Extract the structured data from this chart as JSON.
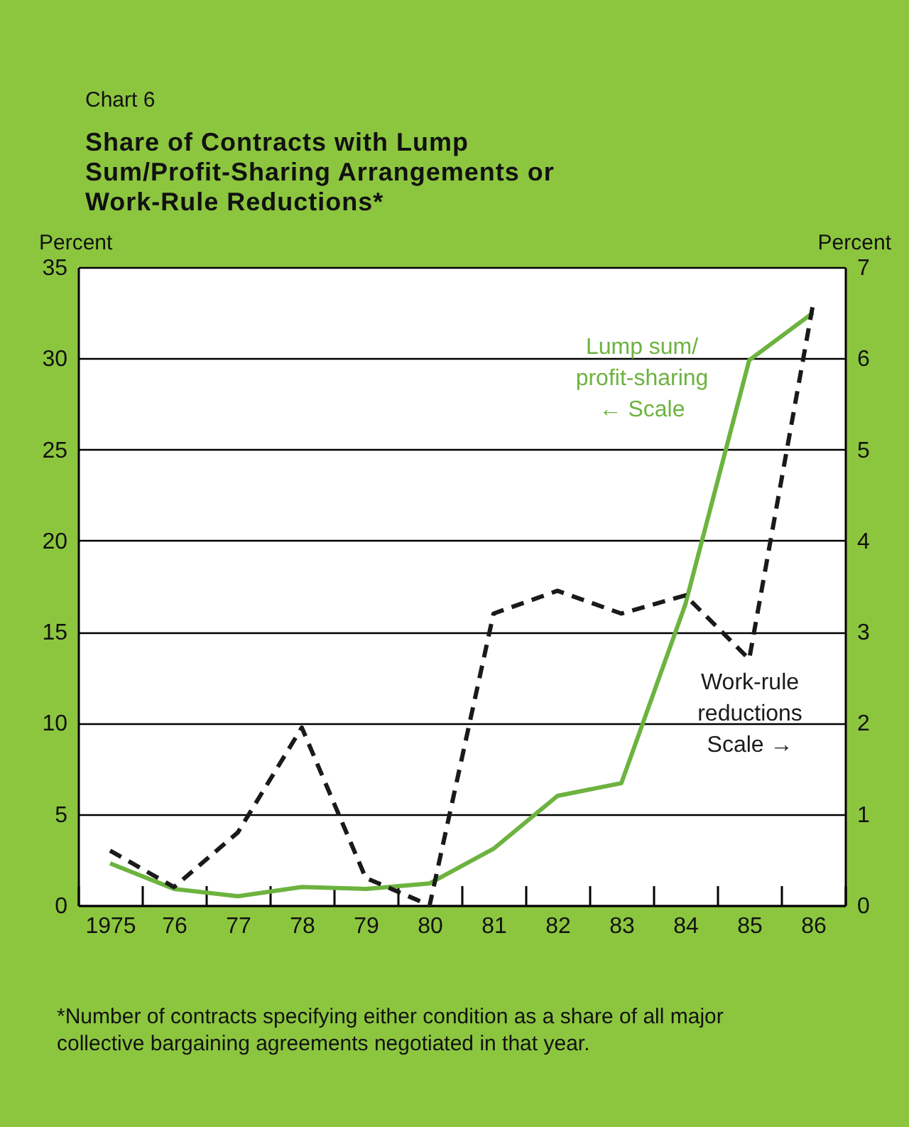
{
  "chart_data": {
    "type": "line",
    "title": "Share of Contracts with Lump Sum/Profit-Sharing Arrangements or Work-Rule Reductions*",
    "subtitle": "Chart 6",
    "ylabel": "Percent",
    "y2label": "Percent",
    "categories": [
      "1975",
      "76",
      "77",
      "78",
      "79",
      "80",
      "81",
      "82",
      "83",
      "84",
      "85",
      "86"
    ],
    "series": [
      {
        "name": "Lump sum/ profit-sharing",
        "color": "#6db33f",
        "line_style": "solid",
        "values": [
          2.3,
          0.9,
          0.5,
          1.0,
          0.9,
          1.2,
          3.1,
          6.0,
          6.7,
          16.5,
          29.9,
          32.5
        ]
      },
      {
        "name": "Work-rule reductions",
        "color": "#1a1a1a",
        "line_style": "dashed",
        "axis": "y2",
        "values": [
          0.6,
          0.2,
          0.8,
          1.95,
          0.3,
          0.0,
          3.2,
          3.45,
          3.2,
          3.4,
          2.7,
          6.6
        ]
      }
    ],
    "ylim": [
      0,
      35
    ],
    "yticks": [
      0,
      5,
      10,
      15,
      20,
      25,
      30,
      35
    ],
    "y2lim": [
      0,
      7
    ],
    "y2ticks": [
      0,
      1,
      2,
      3,
      4,
      5,
      6,
      7
    ],
    "grid": "y",
    "legend": false,
    "annotations": [
      "← Scale",
      "Scale →",
      "*Number of contracts specifying either condition as a share of all major collective bargaining agreements negotiated in that year."
    ]
  }
}
